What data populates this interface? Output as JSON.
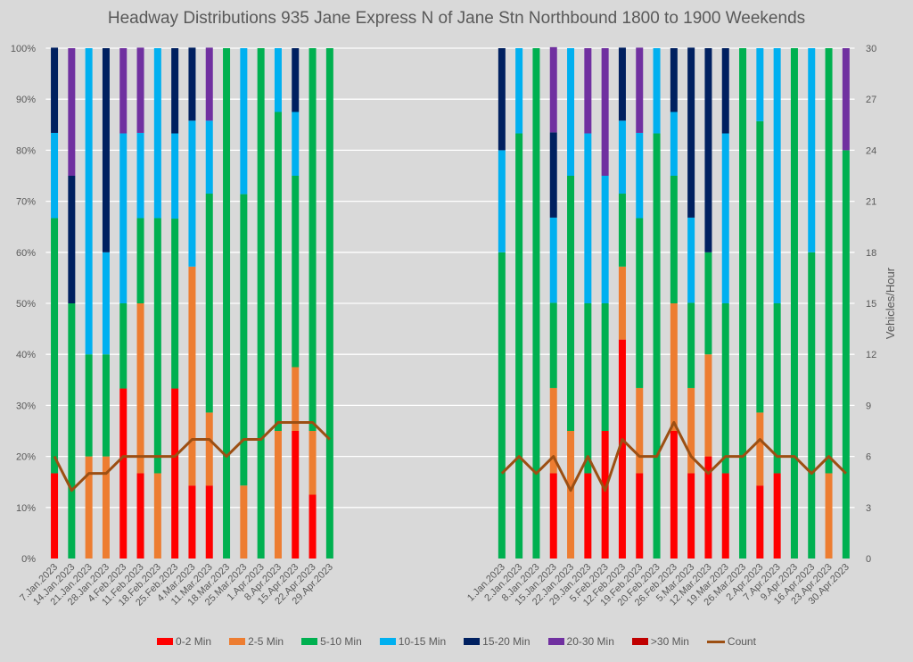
{
  "chart_data": {
    "type": "bar",
    "stacked": true,
    "percent_stacked": true,
    "title": "Headway Distributions 935 Jane Express  N of Jane Stn Northbound 1800 to 1900 Weekends",
    "ylabel": "",
    "y2label": "Vehicles/Hour",
    "ylim": [
      0,
      100
    ],
    "y2lim": [
      0,
      30
    ],
    "y_ticks": [
      "0%",
      "10%",
      "20%",
      "30%",
      "40%",
      "50%",
      "60%",
      "70%",
      "80%",
      "90%",
      "100%"
    ],
    "y2_ticks": [
      "0",
      "3",
      "6",
      "9",
      "12",
      "15",
      "18",
      "21",
      "24",
      "27",
      "30"
    ],
    "grid": true,
    "legend_position": "bottom",
    "gap_slots_between_groups": 9,
    "groups": [
      {
        "categories": [
          "7.Jan.2023",
          "14.Jan.2023",
          "21.Jan.2023",
          "28.Jan.2023",
          "4.Feb.2023",
          "11.Feb.2023",
          "18.Feb.2023",
          "25.Feb.2023",
          "4.Mar.2023",
          "11.Mar.2023",
          "18.Mar.2023",
          "25.Mar.2023",
          "1.Apr.2023",
          "8.Apr.2023",
          "15.Apr.2023",
          "22.Apr.2023",
          "29.Apr.2023"
        ],
        "series_values": {
          "0-2 Min": [
            16.7,
            0,
            0,
            0,
            33.3,
            16.7,
            0,
            33.3,
            14.3,
            14.3,
            0,
            0,
            0,
            0,
            25,
            12.5,
            0
          ],
          "2-5 Min": [
            0,
            0,
            20,
            20,
            0,
            33.3,
            16.7,
            0,
            42.9,
            14.3,
            0,
            14.3,
            0,
            25,
            12.5,
            12.5,
            0
          ],
          "5-10 Min": [
            50,
            50,
            20,
            20,
            16.7,
            16.7,
            50,
            33.3,
            0,
            42.9,
            100,
            57.1,
            100,
            62.5,
            37.5,
            75,
            100
          ],
          "10-15 Min": [
            16.7,
            0,
            60,
            20,
            33.3,
            16.7,
            33.3,
            16.7,
            28.6,
            14.3,
            0,
            28.6,
            0,
            12.5,
            12.5,
            0,
            0
          ],
          "15-20 Min": [
            16.7,
            25,
            0,
            40,
            0,
            0,
            0,
            16.7,
            14.3,
            0,
            0,
            0,
            0,
            0,
            12.5,
            0,
            0
          ],
          "20-30 Min": [
            0,
            25,
            0,
            0,
            16.7,
            16.7,
            0,
            0,
            0,
            14.3,
            0,
            0,
            0,
            0,
            0,
            0,
            0
          ],
          ">30 Min": [
            0,
            0,
            0,
            0,
            0,
            0,
            0,
            0,
            0,
            0,
            0,
            0,
            0,
            0,
            0,
            0,
            0
          ]
        },
        "count": [
          6,
          4,
          5,
          5,
          6,
          6,
          6,
          6,
          7,
          7,
          6,
          7,
          7,
          8,
          8,
          8,
          7
        ]
      },
      {
        "categories": [
          "1.Jan.2023",
          "2.Jan.2023",
          "8.Jan.2023",
          "15.Jan.2023",
          "22.Jan.2023",
          "29.Jan.2023",
          "5.Feb.2023",
          "12.Feb.2023",
          "19.Feb.2023",
          "20.Feb.2023",
          "26.Feb.2023",
          "5.Mar.2023",
          "12.Mar.2023",
          "19.Mar.2023",
          "26.Mar.2023",
          "2.Apr.2023",
          "7.Apr.2023",
          "9.Apr.2023",
          "16.Apr.2023",
          "23.Apr.2023",
          "30.Apr.2023"
        ],
        "series_values": {
          "0-2 Min": [
            0,
            0,
            0,
            16.7,
            0,
            16.7,
            25,
            42.9,
            16.7,
            0,
            25,
            16.7,
            20,
            16.7,
            0,
            14.3,
            16.7,
            0,
            0,
            0,
            0
          ],
          "2-5 Min": [
            0,
            0,
            0,
            16.7,
            25,
            0,
            0,
            14.3,
            16.7,
            0,
            25,
            16.7,
            20,
            0,
            0,
            14.3,
            0,
            0,
            0,
            16.7,
            0
          ],
          "5-10 Min": [
            60,
            83.3,
            100,
            16.7,
            50,
            33.3,
            25,
            14.3,
            33.3,
            83.3,
            25,
            16.7,
            20,
            33.3,
            100,
            57.1,
            33.3,
            100,
            60,
            83.3,
            80
          ],
          "10-15 Min": [
            20,
            16.7,
            0,
            16.7,
            25,
            33.3,
            25,
            14.3,
            16.7,
            16.7,
            12.5,
            16.7,
            0,
            33.3,
            0,
            14.3,
            50,
            0,
            40,
            0,
            0
          ],
          "15-20 Min": [
            20,
            0,
            0,
            16.7,
            0,
            0,
            0,
            14.3,
            0,
            0,
            12.5,
            33.3,
            40,
            16.7,
            0,
            0,
            0,
            0,
            0,
            0,
            0
          ],
          "20-30 Min": [
            0,
            0,
            0,
            16.7,
            0,
            16.7,
            25,
            0,
            16.7,
            0,
            0,
            0,
            0,
            0,
            0,
            0,
            0,
            0,
            0,
            0,
            20
          ],
          ">30 Min": [
            0,
            0,
            0,
            0,
            0,
            0,
            0,
            0,
            0,
            0,
            0,
            0,
            0,
            0,
            0,
            0,
            0,
            0,
            0,
            0,
            0
          ]
        },
        "count": [
          5,
          6,
          5,
          6,
          4,
          6,
          4,
          7,
          6,
          6,
          8,
          6,
          5,
          6,
          6,
          7,
          6,
          6,
          5,
          6,
          5
        ]
      }
    ],
    "series": [
      {
        "name": "0-2 Min",
        "color": "#ff0000"
      },
      {
        "name": "2-5 Min",
        "color": "#ed7d31"
      },
      {
        "name": "5-10 Min",
        "color": "#00b050"
      },
      {
        "name": "10-15 Min",
        "color": "#00b0f0"
      },
      {
        "name": "15-20 Min",
        "color": "#002060"
      },
      {
        "name": "20-30 Min",
        "color": "#7030a0"
      },
      {
        "name": ">30 Min",
        "color": "#c00000"
      }
    ],
    "line_series": {
      "name": "Count",
      "color": "#9c4f13",
      "axis": "secondary"
    }
  }
}
